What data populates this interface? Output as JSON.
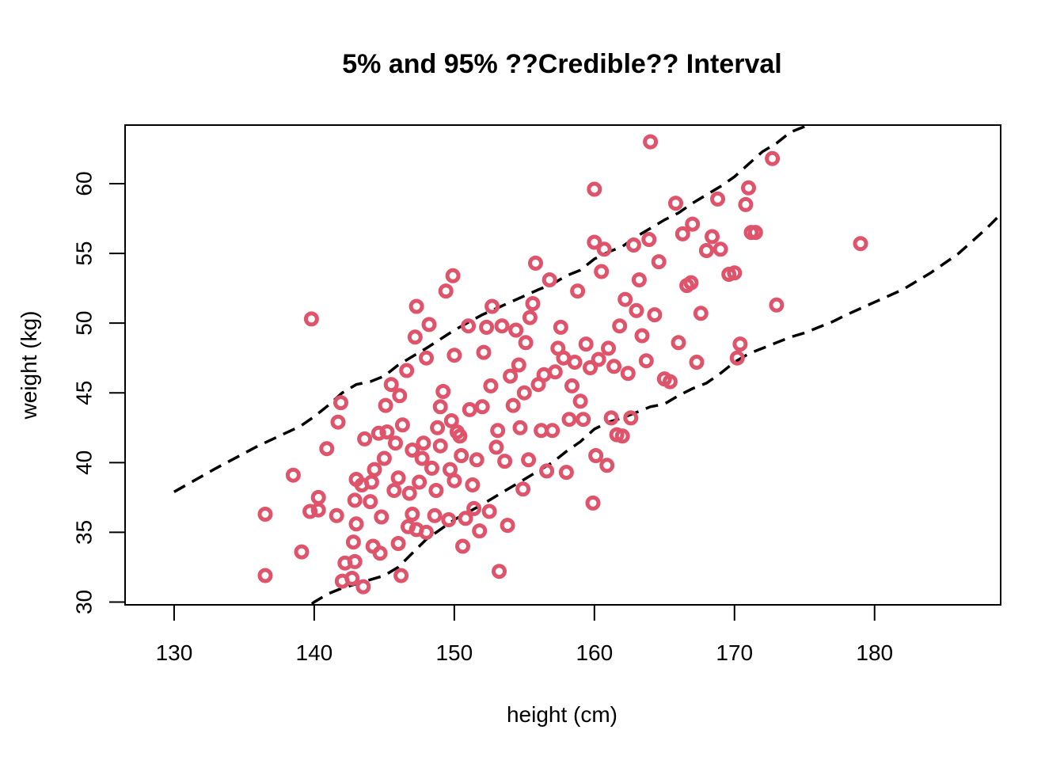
{
  "chart_data": {
    "type": "scatter",
    "title": "5% and 95% ??Credible?? Interval",
    "xlabel": "height (cm)",
    "ylabel": "weight (kg)",
    "xlim": [
      126.5,
      189
    ],
    "ylim": [
      29.8,
      64.2
    ],
    "xticks": [
      130,
      140,
      150,
      160,
      170,
      180
    ],
    "xtick_labels": [
      "130",
      "140",
      "150",
      "160",
      "170",
      "180"
    ],
    "yticks": [
      30,
      35,
      40,
      45,
      50,
      55,
      60
    ],
    "ytick_labels": [
      "30",
      "35",
      "40",
      "45",
      "50",
      "55",
      "60"
    ],
    "grid": false,
    "colors": {
      "points": "#DF536B",
      "interval": "#000000"
    },
    "points": {
      "name": "",
      "x": [
        136.5,
        136.5,
        138.5,
        139.1,
        139.7,
        139.8,
        140.3,
        140.3,
        140.9,
        141.6,
        141.7,
        141.9,
        142.0,
        142.2,
        142.7,
        142.8,
        142.9,
        142.9,
        143.0,
        143.0,
        143.4,
        143.5,
        143.6,
        144.0,
        144.1,
        144.2,
        144.3,
        144.6,
        144.7,
        144.8,
        145.0,
        145.1,
        145.2,
        145.5,
        145.7,
        145.8,
        146.0,
        146.0,
        146.1,
        146.2,
        146.3,
        146.6,
        146.7,
        146.8,
        147.0,
        147.0,
        147.2,
        147.3,
        147.3,
        147.5,
        147.7,
        147.8,
        148.0,
        148.0,
        148.2,
        148.4,
        148.6,
        148.7,
        148.8,
        149.0,
        149.0,
        149.2,
        149.4,
        149.6,
        149.7,
        149.8,
        149.9,
        150.0,
        150.0,
        150.2,
        150.4,
        150.5,
        150.6,
        150.8,
        151.0,
        151.1,
        151.3,
        151.4,
        151.6,
        151.8,
        152.0,
        152.1,
        152.3,
        152.5,
        152.6,
        152.7,
        153.0,
        153.1,
        153.2,
        153.4,
        153.6,
        153.8,
        154.0,
        154.2,
        154.4,
        154.6,
        154.7,
        154.9,
        155.0,
        155.1,
        155.3,
        155.4,
        155.6,
        155.8,
        156.0,
        156.2,
        156.4,
        156.6,
        156.8,
        157.0,
        157.2,
        157.4,
        157.6,
        157.8,
        158.0,
        158.2,
        158.4,
        158.6,
        158.8,
        159.0,
        159.2,
        159.4,
        159.7,
        159.9,
        160.0,
        160.0,
        160.1,
        160.3,
        160.5,
        160.7,
        160.9,
        161.0,
        161.2,
        161.4,
        161.6,
        161.8,
        162.0,
        162.2,
        162.4,
        162.6,
        162.8,
        163.0,
        163.2,
        163.4,
        163.7,
        163.9,
        164.0,
        164.3,
        164.6,
        165.0,
        165.4,
        165.8,
        166.0,
        166.3,
        166.6,
        166.9,
        167.0,
        167.3,
        167.6,
        168.0,
        168.4,
        168.8,
        169.0,
        169.6,
        170.0,
        170.2,
        170.4,
        170.8,
        171.0,
        171.2,
        171.5,
        172.7,
        173.0,
        179.0
      ],
      "y": [
        31.9,
        36.3,
        39.1,
        33.6,
        36.5,
        50.3,
        37.5,
        36.6,
        41.0,
        36.2,
        42.9,
        44.3,
        31.5,
        32.8,
        31.7,
        34.3,
        37.3,
        32.9,
        35.6,
        38.8,
        38.4,
        31.1,
        41.7,
        37.2,
        38.6,
        34.0,
        39.5,
        42.1,
        33.5,
        36.1,
        40.3,
        44.1,
        42.2,
        45.6,
        38.0,
        41.4,
        34.2,
        38.9,
        44.8,
        31.9,
        42.7,
        46.6,
        35.4,
        37.8,
        40.9,
        36.3,
        49.0,
        51.2,
        35.2,
        38.6,
        40.3,
        41.4,
        35.0,
        47.5,
        49.9,
        39.6,
        36.2,
        38.0,
        42.5,
        44.0,
        41.2,
        45.1,
        52.3,
        35.9,
        39.5,
        43.0,
        53.4,
        38.7,
        47.7,
        42.2,
        41.9,
        40.5,
        34.0,
        36.0,
        49.8,
        43.8,
        38.4,
        36.7,
        40.2,
        35.1,
        44.0,
        47.9,
        49.7,
        36.5,
        45.5,
        51.2,
        41.1,
        42.3,
        32.2,
        49.8,
        40.1,
        35.5,
        46.2,
        44.1,
        49.5,
        47.0,
        42.5,
        38.1,
        45.0,
        48.6,
        40.2,
        50.4,
        51.4,
        54.3,
        45.6,
        42.3,
        46.3,
        39.4,
        53.1,
        42.3,
        46.5,
        48.2,
        49.7,
        47.5,
        39.3,
        43.1,
        45.5,
        47.2,
        52.3,
        44.4,
        43.1,
        48.5,
        46.8,
        37.1,
        55.8,
        59.6,
        40.5,
        47.4,
        53.7,
        55.3,
        39.8,
        48.2,
        43.2,
        46.9,
        42.0,
        49.8,
        41.9,
        51.7,
        46.4,
        43.2,
        55.6,
        50.9,
        53.1,
        49.1,
        47.3,
        56.0,
        63.0,
        50.6,
        54.4,
        46.0,
        45.8,
        58.6,
        48.6,
        56.4,
        52.7,
        52.9,
        57.1,
        47.2,
        50.7,
        55.2,
        56.2,
        58.9,
        55.3,
        53.5,
        53.6,
        47.5,
        48.5,
        58.5,
        59.7,
        56.5,
        56.5,
        61.8,
        51.3,
        55.7
      ]
    },
    "interval": {
      "name": "",
      "x": [
        130,
        133,
        136,
        139,
        140,
        141,
        142,
        143,
        144,
        145,
        146,
        147,
        148,
        150,
        152,
        154,
        156,
        157,
        158,
        159,
        160,
        161,
        162,
        163,
        164,
        165,
        166,
        167,
        168,
        169,
        170,
        171,
        172,
        173,
        174,
        175,
        176,
        177,
        178,
        180,
        182,
        184,
        186,
        188,
        189
      ],
      "lower": [
        21.0,
        23.5,
        26.2,
        29.2,
        30.0,
        30.6,
        31.0,
        31.3,
        31.6,
        31.9,
        32.5,
        33.5,
        34.5,
        35.9,
        37.0,
        38.2,
        39.4,
        40.0,
        40.8,
        41.5,
        42.4,
        42.9,
        43.2,
        43.6,
        44.0,
        44.2,
        44.8,
        45.3,
        45.7,
        46.4,
        47.2,
        47.8,
        48.2,
        48.6,
        49.0,
        49.3,
        49.7,
        50.1,
        50.6,
        51.5,
        52.4,
        53.6,
        55.0,
        56.8,
        57.8
      ],
      "upper": [
        37.9,
        39.6,
        41.2,
        42.6,
        43.3,
        44.1,
        45.0,
        45.6,
        45.8,
        46.2,
        47.0,
        47.6,
        48.2,
        49.5,
        50.6,
        51.5,
        52.4,
        52.8,
        53.4,
        53.8,
        54.6,
        55.1,
        55.5,
        56.2,
        56.8,
        57.4,
        57.9,
        58.6,
        59.2,
        59.8,
        60.5,
        61.4,
        62.3,
        62.9,
        63.7,
        64.1,
        64.4,
        64.8,
        65.2,
        66.0,
        66.8,
        67.6,
        68.4,
        69.2,
        69.6
      ]
    }
  }
}
